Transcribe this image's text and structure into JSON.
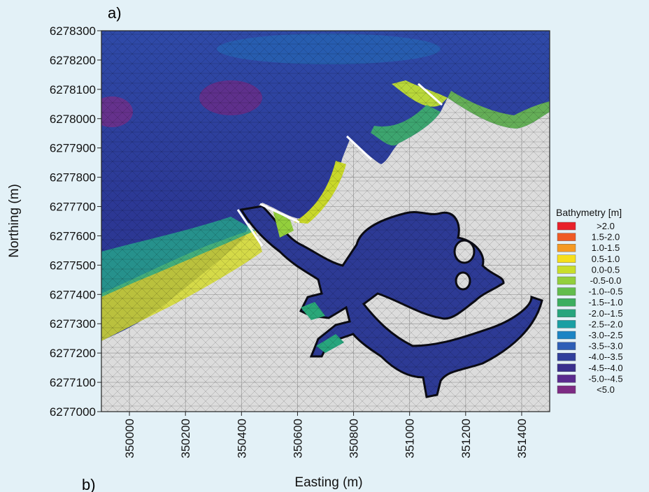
{
  "panels": {
    "a": "a)",
    "b": "b)"
  },
  "chart_data": {
    "type": "heatmap",
    "title": "",
    "xlabel": "Easting (m)",
    "ylabel": "Northing (m)",
    "xlim": [
      349900,
      351500
    ],
    "ylim": [
      6277000,
      6278300
    ],
    "x_ticks": [
      350000,
      350200,
      350400,
      350600,
      350800,
      351000,
      351200,
      351400
    ],
    "y_ticks": [
      6277000,
      6277100,
      6277200,
      6277300,
      6277400,
      6277500,
      6277600,
      6277700,
      6277800,
      6277900,
      6278000,
      6278100,
      6278200,
      6278300
    ],
    "x_tick_labels": [
      "350000",
      "350200",
      "350400",
      "350600",
      "350800",
      "351000",
      "351200",
      "351400"
    ],
    "y_tick_labels": [
      "6277000",
      "6277100",
      "6277200",
      "6277300",
      "6277400",
      "6277500",
      "6277600",
      "6277700",
      "6277800",
      "6277900",
      "6278000",
      "6278100",
      "6278200",
      "6278300"
    ],
    "grid": true,
    "legend_position": "right",
    "legend": {
      "title": "Bathymetry [m]",
      "entries": [
        {
          "label": ">2.0",
          "color": "#e8202a"
        },
        {
          "label": "1.5-2.0",
          "color": "#ef5a25"
        },
        {
          "label": "1.0-1.5",
          "color": "#f59a23"
        },
        {
          "label": "0.5-1.0",
          "color": "#f6df1c"
        },
        {
          "label": "0.0-0.5",
          "color": "#c9de2a"
        },
        {
          "label": "-0.5-0.0",
          "color": "#93cf3c"
        },
        {
          "label": "-1.0--0.5",
          "color": "#62bd4c"
        },
        {
          "label": "-1.5--1.0",
          "color": "#3cae5f"
        },
        {
          "label": "-2.0--1.5",
          "color": "#27a57d"
        },
        {
          "label": "-2.5--2.0",
          "color": "#1a9fa3"
        },
        {
          "label": "-3.0--2.5",
          "color": "#1b84c4"
        },
        {
          "label": "-3.5--3.0",
          "color": "#2d5eb6"
        },
        {
          "label": "-4.0--3.5",
          "color": "#303f9c"
        },
        {
          "label": "-4.5--4.0",
          "color": "#3a2f8d"
        },
        {
          "label": "-5.0--4.5",
          "color": "#5a2b8f"
        },
        {
          "label": "<5.0",
          "color": "#7d2b84"
        }
      ]
    }
  }
}
